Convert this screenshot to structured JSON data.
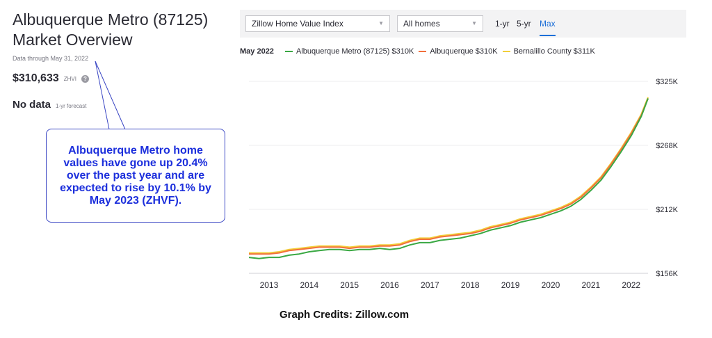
{
  "overview": {
    "title_line1": "Albuquerque Metro (87125)",
    "title_line2": "Market Overview",
    "data_through": "Data through May 31, 2022",
    "price": "$310,633",
    "price_label": "ZHVI",
    "help_icon": "?",
    "no_data": "No data",
    "forecast_label": "1-yr forecast"
  },
  "callout": {
    "text": "Albuquerque Metro home values have gone up 20.4% over the past year and are expected to rise by 10.1% by May 2023 (ZHVF)."
  },
  "toolbar": {
    "index_select": "Zillow Home Value Index",
    "homes_select": "All homes",
    "ranges": [
      "1-yr",
      "5-yr",
      "Max"
    ],
    "active_range": "Max"
  },
  "legend": {
    "date": "May 2022",
    "items": [
      {
        "label": "Albuquerque Metro (87125) $310K",
        "color": "#3aa843"
      },
      {
        "label": "Albuquerque $310K",
        "color": "#f2703b"
      },
      {
        "label": "Bernalillo County $311K",
        "color": "#f2cf3a"
      }
    ]
  },
  "chart_data": {
    "type": "line",
    "y_ticks": [
      "$325K",
      "$268K",
      "$212K",
      "$156K"
    ],
    "ylim": [
      156,
      325
    ],
    "x_ticks": [
      "2013",
      "2014",
      "2015",
      "2016",
      "2017",
      "2018",
      "2019",
      "2020",
      "2021",
      "2022"
    ],
    "xlim": [
      2012.5,
      2022.42
    ],
    "grid": true,
    "series": [
      {
        "name": "Albuquerque Metro (87125)",
        "color": "#3aa843",
        "points": [
          [
            2012.5,
            170
          ],
          [
            2012.75,
            169
          ],
          [
            2013.0,
            170
          ],
          [
            2013.25,
            170
          ],
          [
            2013.5,
            172
          ],
          [
            2013.75,
            173
          ],
          [
            2014.0,
            175
          ],
          [
            2014.25,
            176
          ],
          [
            2014.5,
            177
          ],
          [
            2014.75,
            177
          ],
          [
            2015.0,
            176
          ],
          [
            2015.25,
            177
          ],
          [
            2015.5,
            177
          ],
          [
            2015.75,
            178
          ],
          [
            2016.0,
            177
          ],
          [
            2016.25,
            178
          ],
          [
            2016.5,
            181
          ],
          [
            2016.75,
            183
          ],
          [
            2017.0,
            183
          ],
          [
            2017.25,
            185
          ],
          [
            2017.5,
            186
          ],
          [
            2017.75,
            187
          ],
          [
            2018.0,
            189
          ],
          [
            2018.25,
            191
          ],
          [
            2018.5,
            194
          ],
          [
            2018.75,
            196
          ],
          [
            2019.0,
            198
          ],
          [
            2019.25,
            201
          ],
          [
            2019.5,
            203
          ],
          [
            2019.75,
            205
          ],
          [
            2020.0,
            208
          ],
          [
            2020.25,
            211
          ],
          [
            2020.5,
            215
          ],
          [
            2020.75,
            221
          ],
          [
            2021.0,
            229
          ],
          [
            2021.25,
            238
          ],
          [
            2021.5,
            250
          ],
          [
            2021.75,
            263
          ],
          [
            2022.0,
            277
          ],
          [
            2022.25,
            294
          ],
          [
            2022.42,
            310
          ]
        ]
      },
      {
        "name": "Albuquerque",
        "color": "#f2703b",
        "points": [
          [
            2012.5,
            173
          ],
          [
            2012.75,
            173
          ],
          [
            2013.0,
            173
          ],
          [
            2013.25,
            174
          ],
          [
            2013.5,
            176
          ],
          [
            2013.75,
            177
          ],
          [
            2014.0,
            178
          ],
          [
            2014.25,
            179
          ],
          [
            2014.5,
            179
          ],
          [
            2014.75,
            179
          ],
          [
            2015.0,
            178
          ],
          [
            2015.25,
            179
          ],
          [
            2015.5,
            179
          ],
          [
            2015.75,
            180
          ],
          [
            2016.0,
            180
          ],
          [
            2016.25,
            181
          ],
          [
            2016.5,
            184
          ],
          [
            2016.75,
            186
          ],
          [
            2017.0,
            186
          ],
          [
            2017.25,
            188
          ],
          [
            2017.5,
            189
          ],
          [
            2017.75,
            190
          ],
          [
            2018.0,
            191
          ],
          [
            2018.25,
            193
          ],
          [
            2018.5,
            196
          ],
          [
            2018.75,
            198
          ],
          [
            2019.0,
            200
          ],
          [
            2019.25,
            203
          ],
          [
            2019.5,
            205
          ],
          [
            2019.75,
            207
          ],
          [
            2020.0,
            210
          ],
          [
            2020.25,
            213
          ],
          [
            2020.5,
            217
          ],
          [
            2020.75,
            223
          ],
          [
            2021.0,
            231
          ],
          [
            2021.25,
            240
          ],
          [
            2021.5,
            252
          ],
          [
            2021.75,
            265
          ],
          [
            2022.0,
            279
          ],
          [
            2022.25,
            295
          ],
          [
            2022.42,
            310
          ]
        ]
      },
      {
        "name": "Bernalillo County",
        "color": "#f2cf3a",
        "points": [
          [
            2012.5,
            174
          ],
          [
            2012.75,
            174
          ],
          [
            2013.0,
            174
          ],
          [
            2013.25,
            175
          ],
          [
            2013.5,
            177
          ],
          [
            2013.75,
            178
          ],
          [
            2014.0,
            179
          ],
          [
            2014.25,
            180
          ],
          [
            2014.5,
            180
          ],
          [
            2014.75,
            180
          ],
          [
            2015.0,
            179
          ],
          [
            2015.25,
            180
          ],
          [
            2015.5,
            180
          ],
          [
            2015.75,
            181
          ],
          [
            2016.0,
            181
          ],
          [
            2016.25,
            182
          ],
          [
            2016.5,
            185
          ],
          [
            2016.75,
            187
          ],
          [
            2017.0,
            187
          ],
          [
            2017.25,
            189
          ],
          [
            2017.5,
            190
          ],
          [
            2017.75,
            191
          ],
          [
            2018.0,
            192
          ],
          [
            2018.25,
            194
          ],
          [
            2018.5,
            197
          ],
          [
            2018.75,
            199
          ],
          [
            2019.0,
            201
          ],
          [
            2019.25,
            204
          ],
          [
            2019.5,
            206
          ],
          [
            2019.75,
            208
          ],
          [
            2020.0,
            211
          ],
          [
            2020.25,
            214
          ],
          [
            2020.5,
            218
          ],
          [
            2020.75,
            224
          ],
          [
            2021.0,
            232
          ],
          [
            2021.25,
            241
          ],
          [
            2021.5,
            253
          ],
          [
            2021.75,
            266
          ],
          [
            2022.0,
            280
          ],
          [
            2022.25,
            296
          ],
          [
            2022.42,
            311
          ]
        ]
      }
    ]
  },
  "credits": "Graph Credits: Zillow.com"
}
